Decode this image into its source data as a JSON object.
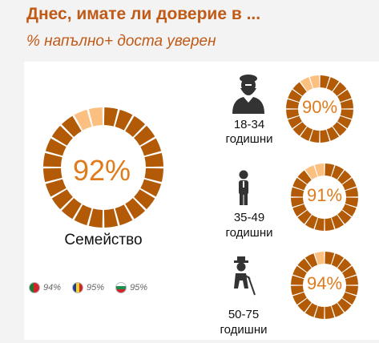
{
  "title": "Днес, имате ли доверие в ...",
  "subtitle": "% напълно+ доста уверен",
  "colors": {
    "dark": "#b35a06",
    "light": "#fbbf80",
    "text_accent": "#e07b1c",
    "title": "#c05a17"
  },
  "chart_data": {
    "type": "donut",
    "main": {
      "label": "Семейство",
      "value": 92,
      "value_label": "92%"
    },
    "age_groups": [
      {
        "label": "18-34",
        "sublabel": "годишни",
        "value": 90,
        "value_label": "90%",
        "icon": "bearded-man-icon"
      },
      {
        "label": "35-49",
        "sublabel": "годишни",
        "value": 91,
        "value_label": "91%",
        "icon": "man-standing-icon"
      },
      {
        "label": "50-75",
        "sublabel": "годишни",
        "value": 94,
        "value_label": "94%",
        "icon": "elderly-man-with-cane-icon"
      }
    ],
    "countries": [
      {
        "flag": "portugal-flag-icon",
        "value": 94,
        "value_label": "94%"
      },
      {
        "flag": "romania-flag-icon",
        "value": 95,
        "value_label": "95%"
      },
      {
        "flag": "bulgaria-flag-icon",
        "value": 95,
        "value_label": "95%"
      }
    ]
  }
}
